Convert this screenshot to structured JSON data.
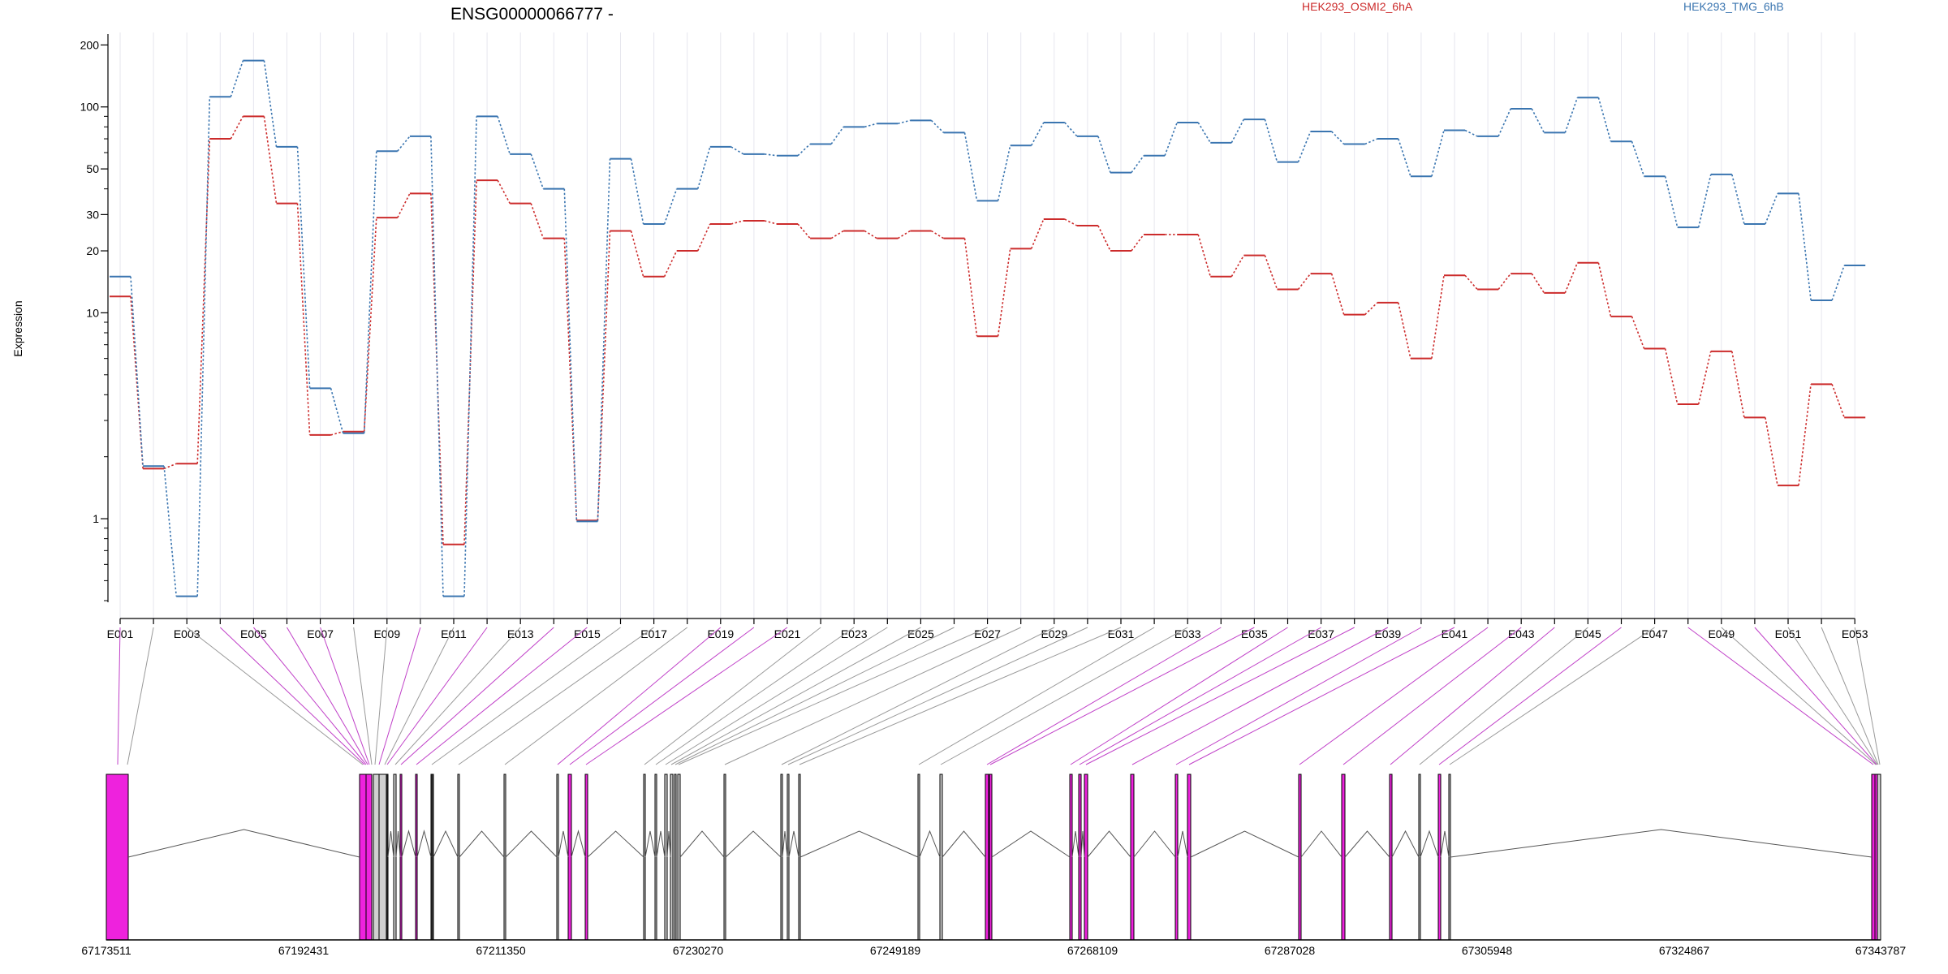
{
  "chart_data": {
    "type": "line",
    "title": "ENSG00000066777 -",
    "ylabel": "Expression",
    "y_scale": "log",
    "ylim": [
      0.4,
      210
    ],
    "y_ticks": [
      1,
      10,
      20,
      30,
      50,
      100,
      200
    ],
    "y_tick_labels": [
      "1",
      "10",
      "20",
      "30",
      "50",
      "100",
      "200"
    ],
    "categories": [
      "E001",
      "E002",
      "E003",
      "E004",
      "E005",
      "E006",
      "E007",
      "E008",
      "E009",
      "E010",
      "E011",
      "E012",
      "E013",
      "E014",
      "E015",
      "E016",
      "E017",
      "E018",
      "E019",
      "E020",
      "E021",
      "E022",
      "E023",
      "E024",
      "E025",
      "E026",
      "E027",
      "E028",
      "E029",
      "E030",
      "E031",
      "E032",
      "E033",
      "E034",
      "E035",
      "E036",
      "E037",
      "E038",
      "E039",
      "E040",
      "E041",
      "E042",
      "E043",
      "E044",
      "E045",
      "E046",
      "E047",
      "E048",
      "E049",
      "E050",
      "E051",
      "E052",
      "E053"
    ],
    "shown_tick_labels": [
      "E001",
      "E003",
      "E005",
      "E007",
      "E009",
      "E011",
      "E013",
      "E015",
      "E017",
      "E019",
      "E021",
      "E023",
      "E025",
      "E027",
      "E029",
      "E031",
      "E033",
      "E035",
      "E037",
      "E039",
      "E041",
      "E043",
      "E045",
      "E047",
      "E049",
      "E051",
      "E053"
    ],
    "series": [
      {
        "name": "HEK293_OSMI2_6hA",
        "color": "#cc2b2b",
        "values": [
          12,
          1.75,
          1.85,
          70,
          90,
          34,
          2.55,
          2.65,
          29,
          38,
          0.75,
          44,
          34,
          23,
          0.98,
          25,
          15,
          20,
          27,
          28,
          27,
          23,
          25,
          23,
          25,
          23,
          7.7,
          20.5,
          28.5,
          26.5,
          20,
          24,
          24,
          15,
          19,
          13,
          15.5,
          9.8,
          11.2,
          6,
          15.2,
          13,
          15.5,
          12.5,
          17.5,
          9.6,
          6.7,
          3.6,
          6.5,
          3.1,
          1.45,
          4.5,
          3.1
        ]
      },
      {
        "name": "HEK293_TMG_6hB",
        "color": "#3a75b0",
        "values": [
          15,
          1.8,
          0.42,
          112,
          168,
          64,
          4.3,
          2.6,
          61,
          72,
          0.42,
          90,
          59,
          40,
          0.97,
          56,
          27,
          40,
          64,
          59,
          58,
          66,
          80,
          83,
          86,
          75,
          35,
          65,
          84,
          72,
          48,
          58,
          84,
          67,
          87,
          54,
          76,
          66,
          70,
          46,
          77,
          72,
          98,
          75,
          111,
          68,
          46,
          26,
          47,
          27,
          38,
          11.5,
          17
        ]
      }
    ],
    "legend_position": "top",
    "genome_axis": {
      "tick_labels": [
        "67173511",
        "67192431",
        "67211350",
        "67230270",
        "67249189",
        "67268109",
        "67287028",
        "67305948",
        "67324867",
        "67343787"
      ]
    }
  },
  "colors": {
    "exon_highlight": "#ee22dd",
    "exon_neutral": "#d0d0d0",
    "connector_highlight": "#c040c8",
    "connector_neutral": "#9a9a9a",
    "grid": "#e6e6ee"
  }
}
